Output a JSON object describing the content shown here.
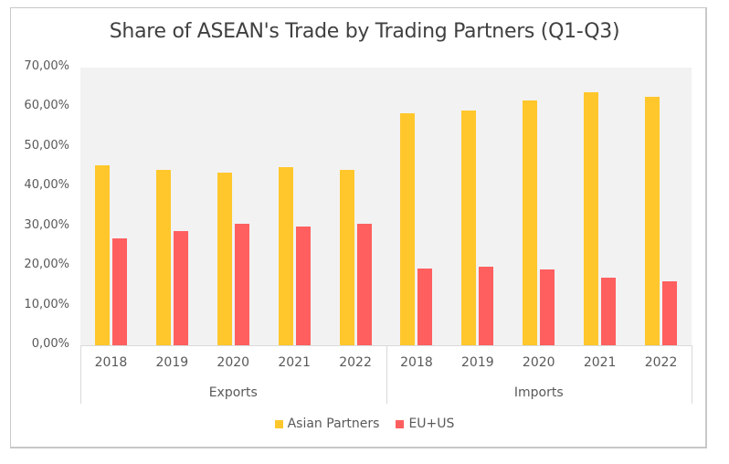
{
  "chart_data": {
    "type": "bar",
    "title": "Share of ASEAN's Trade by Trading Partners (Q1-Q3)",
    "xlabel": "",
    "ylabel": "",
    "ylim": [
      0,
      70
    ],
    "y_ticks": [
      "0,00%",
      "10,00%",
      "20,00%",
      "30,00%",
      "40,00%",
      "50,00%",
      "60,00%",
      "70,00%"
    ],
    "grid": false,
    "legend_position": "bottom",
    "groups": [
      {
        "label": "Exports",
        "categories": [
          "2018",
          "2019",
          "2020",
          "2021",
          "2022"
        ]
      },
      {
        "label": "Imports",
        "categories": [
          "2018",
          "2019",
          "2020",
          "2021",
          "2022"
        ]
      }
    ],
    "categories": [
      "Exports 2018",
      "Exports 2019",
      "Exports 2020",
      "Exports 2021",
      "Exports 2022",
      "Imports 2018",
      "Imports 2019",
      "Imports 2020",
      "Imports 2021",
      "Imports 2022"
    ],
    "series": [
      {
        "name": "Asian Partners",
        "color": "#FFC72C",
        "values": [
          45.3,
          44.3,
          43.6,
          45.0,
          44.3,
          58.4,
          59.1,
          61.7,
          63.7,
          62.6
        ]
      },
      {
        "name": "EU+US",
        "color": "#FF5F5F",
        "values": [
          27.0,
          28.9,
          30.7,
          30.0,
          30.7,
          19.4,
          19.9,
          19.2,
          17.1,
          16.2
        ]
      }
    ]
  },
  "colors": {
    "plot_background": "#F2F2F2",
    "axis_line": "#D9D9D9",
    "frame_border": "#C8C8C8"
  }
}
